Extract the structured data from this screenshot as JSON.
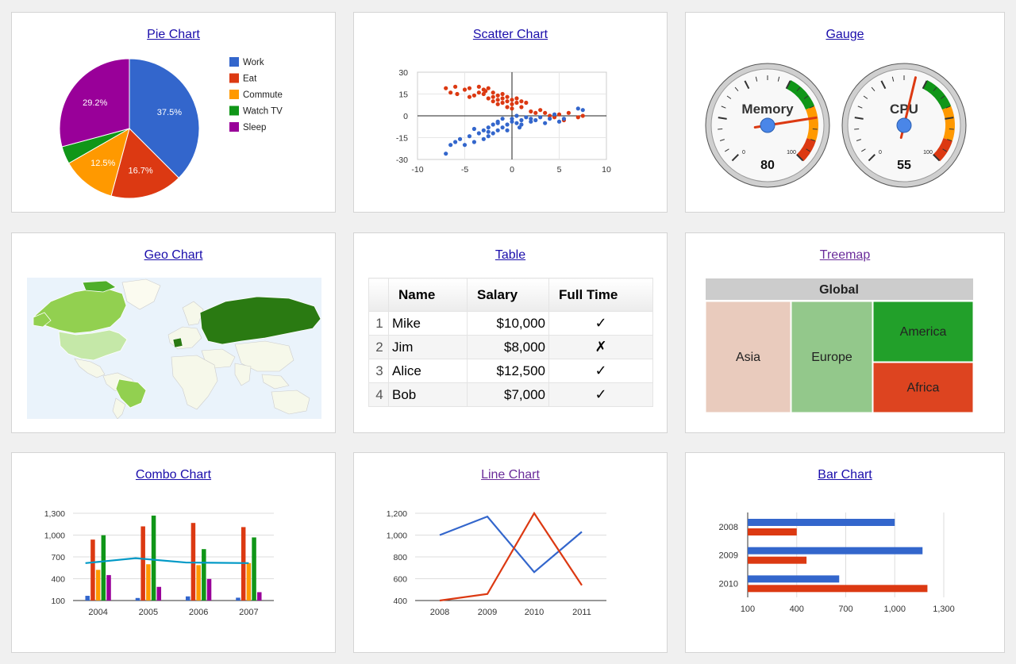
{
  "cards": {
    "pie": "Pie Chart",
    "scatter": "Scatter Chart",
    "gauge": "Gauge",
    "geo": "Geo Chart",
    "table": "Table",
    "treemap": "Treemap",
    "combo": "Combo Chart",
    "line": "Line Chart",
    "bar": "Bar Chart"
  },
  "table": {
    "columns": [
      "Name",
      "Salary",
      "Full Time"
    ],
    "rows": [
      {
        "index": "1",
        "name": "Mike",
        "salary": "$10,000",
        "full_time": "✓"
      },
      {
        "index": "2",
        "name": "Jim",
        "salary": "$8,000",
        "full_time": "✗"
      },
      {
        "index": "3",
        "name": "Alice",
        "salary": "$12,500",
        "full_time": "✓"
      },
      {
        "index": "4",
        "name": "Bob",
        "salary": "$7,000",
        "full_time": "✓"
      }
    ]
  },
  "colors": {
    "blue": "#3366cc",
    "red": "#dc3912",
    "orange": "#ff9900",
    "green": "#109618",
    "purple": "#990099",
    "teal": "#0099c6"
  },
  "chart_data": [
    {
      "id": "pie",
      "type": "pie",
      "legend": "right",
      "slices": [
        {
          "name": "Work",
          "value": 37.5,
          "label": "37.5%",
          "color": "#3366cc"
        },
        {
          "name": "Eat",
          "value": 16.7,
          "label": "16.7%",
          "color": "#dc3912"
        },
        {
          "name": "Commute",
          "value": 12.5,
          "label": "12.5%",
          "color": "#ff9900"
        },
        {
          "name": "Watch TV",
          "value": 4.1,
          "label": "",
          "color": "#109618"
        },
        {
          "name": "Sleep",
          "value": 29.2,
          "label": "29.2%",
          "color": "#990099"
        }
      ]
    },
    {
      "id": "scatter",
      "type": "scatter",
      "xlim": [
        -10,
        10
      ],
      "ylim": [
        -30,
        30
      ],
      "xticks": [
        "-10",
        "-5",
        "0",
        "5",
        "10"
      ],
      "yticks": [
        "30",
        "15",
        "0",
        "-15",
        "-30"
      ],
      "series": [
        {
          "color": "#dc3912",
          "points": [
            [
              -7,
              19
            ],
            [
              -6.5,
              16
            ],
            [
              -6,
              20
            ],
            [
              -5.8,
              15
            ],
            [
              -5,
              18
            ],
            [
              -4.5,
              19
            ],
            [
              -4,
              14
            ],
            [
              -3.5,
              20
            ],
            [
              -3,
              18
            ],
            [
              -3,
              15
            ],
            [
              -2.5,
              12
            ],
            [
              -2.5,
              19
            ],
            [
              -2,
              10
            ],
            [
              -2,
              16
            ],
            [
              -2,
              13
            ],
            [
              -1.5,
              8
            ],
            [
              -1.5,
              14
            ],
            [
              -1.5,
              11
            ],
            [
              -1,
              12
            ],
            [
              -1,
              9
            ],
            [
              -1,
              15
            ],
            [
              -0.5,
              10
            ],
            [
              -0.5,
              6
            ],
            [
              -0.5,
              13
            ],
            [
              0,
              8
            ],
            [
              0,
              11
            ],
            [
              0,
              5
            ],
            [
              0.5,
              9
            ],
            [
              0.5,
              12
            ],
            [
              1,
              6
            ],
            [
              1,
              10
            ],
            [
              1.5,
              9
            ],
            [
              2,
              3
            ],
            [
              2.5,
              2
            ],
            [
              3,
              4
            ],
            [
              3.5,
              2
            ],
            [
              4,
              0
            ],
            [
              4.5,
              -1
            ],
            [
              5,
              1
            ],
            [
              5.5,
              -3
            ],
            [
              6,
              2
            ],
            [
              7,
              -1
            ],
            [
              7.5,
              0
            ],
            [
              -3.5,
              16
            ],
            [
              -4.5,
              13
            ],
            [
              -2.8,
              17
            ]
          ]
        },
        {
          "color": "#3366cc",
          "points": [
            [
              -7,
              -26
            ],
            [
              -6.5,
              -20
            ],
            [
              -6,
              -18
            ],
            [
              -5.5,
              -16
            ],
            [
              -5,
              -20
            ],
            [
              -4.5,
              -14
            ],
            [
              -4,
              -18
            ],
            [
              -3.5,
              -12
            ],
            [
              -3,
              -16
            ],
            [
              -3,
              -10
            ],
            [
              -2.5,
              -14
            ],
            [
              -2.5,
              -8
            ],
            [
              -2,
              -12
            ],
            [
              -2,
              -6
            ],
            [
              -1.5,
              -10
            ],
            [
              -1.5,
              -4
            ],
            [
              -1,
              -8
            ],
            [
              -1,
              -2
            ],
            [
              -0.5,
              -6
            ],
            [
              -0.5,
              -10
            ],
            [
              0,
              -4
            ],
            [
              0,
              -2
            ],
            [
              0.5,
              -5
            ],
            [
              0.5,
              0
            ],
            [
              1,
              -3
            ],
            [
              1,
              -6
            ],
            [
              1.5,
              -1
            ],
            [
              2,
              -4
            ],
            [
              2,
              -2
            ],
            [
              2.5,
              -3
            ],
            [
              3,
              -1
            ],
            [
              3.5,
              -5
            ],
            [
              4,
              -2
            ],
            [
              4.5,
              1
            ],
            [
              5,
              -4
            ],
            [
              5.5,
              -2
            ],
            [
              7,
              5
            ],
            [
              7.5,
              4
            ],
            [
              -1.5,
              -5
            ],
            [
              -2.5,
              -11
            ],
            [
              0.8,
              -8
            ],
            [
              -4,
              -9
            ]
          ]
        }
      ]
    },
    {
      "id": "gauge",
      "type": "gauge",
      "min_label": "0",
      "max_label": "100",
      "gauges": [
        {
          "label": "Memory",
          "value": 80
        },
        {
          "label": "CPU",
          "value": 55
        }
      ]
    },
    {
      "id": "treemap",
      "type": "treemap",
      "root": "Global",
      "nodes": [
        {
          "name": "Asia",
          "color": "#e9cbbd"
        },
        {
          "name": "Europe",
          "color": "#93c88b"
        },
        {
          "name": "America",
          "color": "#22a02a"
        },
        {
          "name": "Africa",
          "color": "#dd4420"
        }
      ]
    },
    {
      "id": "combo",
      "type": "bar",
      "categories": [
        "2004",
        "2005",
        "2006",
        "2007"
      ],
      "ylim": [
        100,
        1300
      ],
      "yticks": [
        "1,300",
        "1,000",
        "700",
        "400",
        "100"
      ],
      "series": [
        {
          "color": "#3366cc",
          "values": [
            165,
            135,
            157,
            139
          ]
        },
        {
          "color": "#dc3912",
          "values": [
            938,
            1120,
            1167,
            1110
          ]
        },
        {
          "color": "#ff9900",
          "values": [
            522,
            599,
            587,
            615
          ]
        },
        {
          "color": "#109618",
          "values": [
            998,
            1268,
            807,
            968
          ]
        },
        {
          "color": "#990099",
          "values": [
            450,
            288,
            397,
            215
          ]
        }
      ],
      "line": {
        "color": "#0099c6",
        "values": [
          614.6,
          682,
          623,
          614.6
        ]
      }
    },
    {
      "id": "line",
      "type": "line",
      "categories": [
        "2008",
        "2009",
        "2010",
        "2011"
      ],
      "ylim": [
        400,
        1200
      ],
      "yticks": [
        "1,200",
        "1,000",
        "800",
        "600",
        "400"
      ],
      "series": [
        {
          "color": "#3366cc",
          "values": [
            1000,
            1170,
            660,
            1030
          ]
        },
        {
          "color": "#dc3912",
          "values": [
            400,
            460,
            1200,
            540
          ]
        }
      ]
    },
    {
      "id": "bar",
      "type": "bar",
      "orientation": "horizontal",
      "categories": [
        "2008",
        "2009",
        "2010"
      ],
      "xlim": [
        100,
        1300
      ],
      "xticks": [
        "100",
        "400",
        "700",
        "1,000",
        "1,300"
      ],
      "series": [
        {
          "color": "#3366cc",
          "values": [
            1000,
            1170,
            660
          ]
        },
        {
          "color": "#dc3912",
          "values": [
            400,
            460,
            1200
          ]
        }
      ]
    }
  ]
}
